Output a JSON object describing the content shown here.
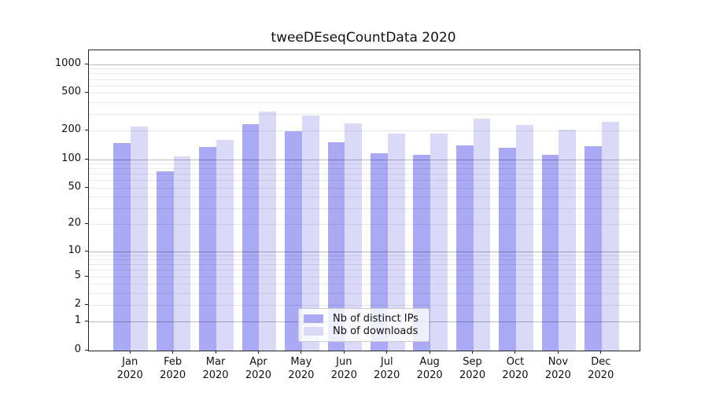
{
  "title": "tweeDEseqCountData 2020",
  "chart_data": {
    "type": "bar",
    "title": "tweeDEseqCountData 2020",
    "categories": [
      "Jan",
      "Feb",
      "Mar",
      "Apr",
      "May",
      "Jun",
      "Jul",
      "Aug",
      "Sep",
      "Oct",
      "Nov",
      "Dec"
    ],
    "year": "2020",
    "series": [
      {
        "name": "Nb of distinct IPs",
        "color": "#a9a9f5",
        "values": [
          149,
          74,
          135,
          235,
          197,
          150,
          115,
          111,
          140,
          133,
          112,
          138
        ]
      },
      {
        "name": "Nb of downloads",
        "color": "#dadaf8",
        "values": [
          220,
          108,
          160,
          320,
          290,
          240,
          186,
          186,
          270,
          230,
          205,
          250
        ]
      }
    ],
    "yscale": "log10(value+1)",
    "yticks": [
      0,
      1,
      2,
      5,
      10,
      20,
      50,
      100,
      200,
      500,
      1000
    ],
    "ylim": [
      0,
      1400
    ],
    "xlabel": "",
    "ylabel": "",
    "grid": true,
    "grid_minor_ticks": [
      2,
      3,
      4,
      5,
      6,
      7,
      8,
      9,
      20,
      30,
      40,
      50,
      60,
      70,
      80,
      90,
      200,
      300,
      400,
      500,
      600,
      700,
      800,
      900
    ],
    "grid_major_ticks": [
      1,
      10,
      100,
      1000
    ],
    "legend_position": "lower center inside"
  },
  "colors": {
    "bar_ips": "#a9a9f5",
    "bar_downloads": "#dadaf8",
    "grid_major": "#bababa",
    "grid_minor": "#ebebeb",
    "spine": "#222222",
    "text": "#111111",
    "legend_border": "#cccccc",
    "legend_bg": "rgba(255,255,255,0.8)"
  }
}
